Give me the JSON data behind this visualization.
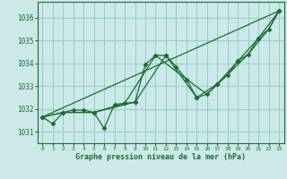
{
  "title": "Graphe pression niveau de la mer (hPa)",
  "bg_color": "#cce8e8",
  "grid_color": "#99cccc",
  "line_color": "#1a6e2e",
  "marker_color": "#1a6e2e",
  "xlim": [
    -0.5,
    23.5
  ],
  "ylim": [
    1030.5,
    1036.7
  ],
  "yticks": [
    1031,
    1032,
    1033,
    1034,
    1035,
    1036
  ],
  "xticks": [
    0,
    1,
    2,
    3,
    4,
    5,
    6,
    7,
    8,
    9,
    10,
    11,
    12,
    13,
    14,
    15,
    16,
    17,
    18,
    19,
    20,
    21,
    22,
    23
  ],
  "series_main": {
    "x": [
      0,
      1,
      2,
      3,
      4,
      5,
      6,
      7,
      8,
      9,
      10,
      11,
      12,
      13,
      14,
      15,
      16,
      17,
      18,
      19,
      20,
      21,
      22,
      23
    ],
    "y": [
      1031.65,
      1031.35,
      1031.85,
      1031.95,
      1031.95,
      1031.85,
      1031.15,
      1032.2,
      1032.25,
      1032.3,
      1033.95,
      1034.35,
      1034.35,
      1033.85,
      1033.3,
      1032.5,
      1032.65,
      1033.1,
      1033.5,
      1034.1,
      1034.4,
      1035.1,
      1035.5,
      1036.3
    ]
  },
  "series_diag": {
    "x": [
      0,
      23
    ],
    "y": [
      1031.65,
      1036.3
    ]
  },
  "series_smooth1": {
    "x": [
      0,
      2,
      5,
      8,
      11,
      14,
      16,
      18,
      20,
      22,
      23
    ],
    "y": [
      1031.65,
      1031.85,
      1031.85,
      1032.25,
      1034.35,
      1033.3,
      1032.65,
      1033.5,
      1034.4,
      1035.5,
      1036.3
    ]
  },
  "series_smooth2": {
    "x": [
      0,
      2,
      5,
      9,
      12,
      15,
      17,
      19,
      21,
      23
    ],
    "y": [
      1031.65,
      1031.85,
      1031.85,
      1032.3,
      1034.35,
      1032.5,
      1033.1,
      1034.1,
      1035.1,
      1036.3
    ]
  }
}
